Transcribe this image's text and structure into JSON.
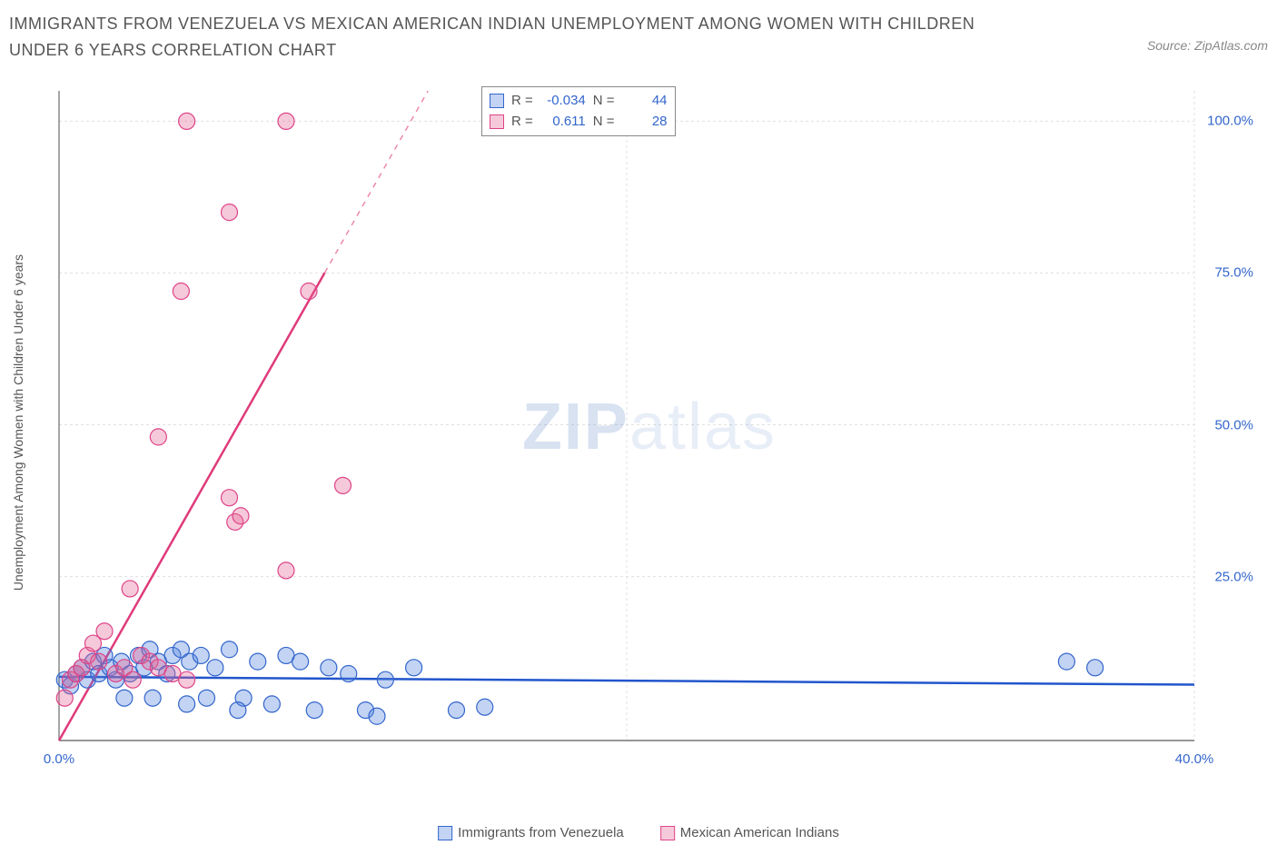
{
  "title": "IMMIGRANTS FROM VENEZUELA VS MEXICAN AMERICAN INDIAN UNEMPLOYMENT AMONG WOMEN WITH CHILDREN UNDER 6 YEARS CORRELATION CHART",
  "source_label": "Source: ZipAtlas.com",
  "watermark_bold": "ZIP",
  "watermark_light": "atlas",
  "y_axis_label": "Unemployment Among Women with Children Under 6 years",
  "chart": {
    "type": "scatter",
    "plot_bg": "#ffffff",
    "grid_color": "#e0e0e0",
    "axis_color": "#888888",
    "x_min": 0,
    "x_max": 40,
    "y_min": -2,
    "y_max": 105,
    "x_ticks": [
      0,
      20,
      40
    ],
    "x_tick_labels": [
      "0.0%",
      "",
      "40.0%"
    ],
    "y_ticks_right": [
      25,
      50,
      75,
      100
    ],
    "y_tick_labels_right": [
      "25.0%",
      "50.0%",
      "75.0%",
      "100.0%"
    ],
    "y_grid": [
      25,
      50,
      75,
      100
    ],
    "x_grid_minor": [
      20
    ],
    "series": [
      {
        "name": "Immigrants from Venezuela",
        "color_fill": "rgba(80, 130, 220, 0.35)",
        "color_stroke": "#3366cc",
        "swatch_fill": "rgba(80, 130, 220, 0.35)",
        "swatch_border": "#3366cc",
        "marker_r": 9,
        "trend": {
          "slope": -0.034,
          "x1": 0,
          "y1": 8.5,
          "x2": 40,
          "y2": 7.2,
          "color": "#2255cc",
          "width": 2.5
        },
        "stats": {
          "R": "-0.034",
          "N": "44"
        },
        "points": [
          {
            "x": 0.2,
            "y": 8
          },
          {
            "x": 0.4,
            "y": 7
          },
          {
            "x": 0.6,
            "y": 9
          },
          {
            "x": 0.8,
            "y": 10
          },
          {
            "x": 1.0,
            "y": 8
          },
          {
            "x": 1.2,
            "y": 11
          },
          {
            "x": 1.4,
            "y": 9
          },
          {
            "x": 1.6,
            "y": 12
          },
          {
            "x": 1.8,
            "y": 10
          },
          {
            "x": 2.0,
            "y": 8
          },
          {
            "x": 2.2,
            "y": 11
          },
          {
            "x": 2.5,
            "y": 9
          },
          {
            "x": 2.8,
            "y": 12
          },
          {
            "x": 3.0,
            "y": 10
          },
          {
            "x": 3.2,
            "y": 13
          },
          {
            "x": 3.5,
            "y": 11
          },
          {
            "x": 3.8,
            "y": 9
          },
          {
            "x": 4.0,
            "y": 12
          },
          {
            "x": 4.3,
            "y": 13
          },
          {
            "x": 4.6,
            "y": 11
          },
          {
            "x": 5.0,
            "y": 12
          },
          {
            "x": 5.5,
            "y": 10
          },
          {
            "x": 6.0,
            "y": 13
          },
          {
            "x": 6.5,
            "y": 5
          },
          {
            "x": 7.0,
            "y": 11
          },
          {
            "x": 7.5,
            "y": 4
          },
          {
            "x": 8.0,
            "y": 12
          },
          {
            "x": 8.5,
            "y": 11
          },
          {
            "x": 9.0,
            "y": 3
          },
          {
            "x": 9.5,
            "y": 10
          },
          {
            "x": 10.2,
            "y": 9
          },
          {
            "x": 10.8,
            "y": 3
          },
          {
            "x": 11.5,
            "y": 8
          },
          {
            "x": 12.5,
            "y": 10
          },
          {
            "x": 14.0,
            "y": 3
          },
          {
            "x": 15.0,
            "y": 3.5
          },
          {
            "x": 35.5,
            "y": 11
          },
          {
            "x": 36.5,
            "y": 10
          },
          {
            "x": 2.3,
            "y": 5
          },
          {
            "x": 3.3,
            "y": 5
          },
          {
            "x": 4.5,
            "y": 4
          },
          {
            "x": 5.2,
            "y": 5
          },
          {
            "x": 6.3,
            "y": 3
          },
          {
            "x": 11.2,
            "y": 2
          }
        ]
      },
      {
        "name": "Mexican American Indians",
        "color_fill": "rgba(230, 100, 150, 0.35)",
        "color_stroke": "#dd4488",
        "swatch_fill": "rgba(230, 100, 150, 0.35)",
        "swatch_border": "#dd4488",
        "marker_r": 9,
        "trend": {
          "slope": 0.611,
          "x1": 0,
          "y1": -2,
          "x2": 13,
          "y2": 105,
          "color": "#e03a7a",
          "width": 2.5,
          "dashed_tail": true
        },
        "stats": {
          "R": "0.611",
          "N": "28"
        },
        "points": [
          {
            "x": 0.2,
            "y": 5
          },
          {
            "x": 0.4,
            "y": 8
          },
          {
            "x": 0.6,
            "y": 9
          },
          {
            "x": 0.8,
            "y": 10
          },
          {
            "x": 1.0,
            "y": 12
          },
          {
            "x": 1.2,
            "y": 14
          },
          {
            "x": 1.4,
            "y": 11
          },
          {
            "x": 1.6,
            "y": 16
          },
          {
            "x": 2.0,
            "y": 9
          },
          {
            "x": 2.3,
            "y": 10
          },
          {
            "x": 2.6,
            "y": 8
          },
          {
            "x": 2.9,
            "y": 12
          },
          {
            "x": 3.2,
            "y": 11
          },
          {
            "x": 3.5,
            "y": 10
          },
          {
            "x": 4.0,
            "y": 9
          },
          {
            "x": 4.5,
            "y": 8
          },
          {
            "x": 2.5,
            "y": 23
          },
          {
            "x": 3.5,
            "y": 48
          },
          {
            "x": 6.0,
            "y": 38
          },
          {
            "x": 6.2,
            "y": 34
          },
          {
            "x": 6.4,
            "y": 35
          },
          {
            "x": 8.0,
            "y": 26
          },
          {
            "x": 10.0,
            "y": 40
          },
          {
            "x": 4.3,
            "y": 72
          },
          {
            "x": 8.8,
            "y": 72
          },
          {
            "x": 6.0,
            "y": 85
          },
          {
            "x": 4.5,
            "y": 100
          },
          {
            "x": 8.0,
            "y": 100
          }
        ]
      }
    ]
  },
  "legend": {
    "series1_label": "Immigrants from Venezuela",
    "series2_label": "Mexican American Indians"
  },
  "stats_box": {
    "r_label": "R =",
    "n_label": "N ="
  }
}
